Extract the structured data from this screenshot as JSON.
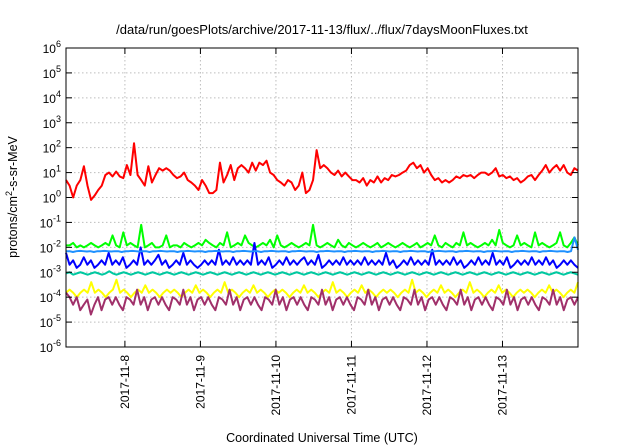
{
  "chart_data": {
    "type": "line",
    "title": "/data/run/goesPlots/archive/2017-11-13/flux/../flux/7daysMoonFluxes.txt",
    "xlabel": "Coordinated Universal Time (UTC)",
    "ylabel_prefix": "protons/cm",
    "ylabel_sup": "2",
    "ylabel_suffix": "-s-sr-MeV",
    "yscale": "log",
    "ylim": [
      1e-06,
      1000000.0
    ],
    "y_ticks": [
      {
        "base": "10",
        "exp": "-6",
        "value": 1e-06
      },
      {
        "base": "10",
        "exp": "-5",
        "value": 1e-05
      },
      {
        "base": "10",
        "exp": "-4",
        "value": 0.0001
      },
      {
        "base": "10",
        "exp": "-3",
        "value": 0.001
      },
      {
        "base": "10",
        "exp": "-2",
        "value": 0.01
      },
      {
        "base": "10",
        "exp": "-1",
        "value": 0.1
      },
      {
        "base": "10",
        "exp": "0",
        "value": 1
      },
      {
        "base": "10",
        "exp": "1",
        "value": 10
      },
      {
        "base": "10",
        "exp": "2",
        "value": 100
      },
      {
        "base": "10",
        "exp": "3",
        "value": 1000
      },
      {
        "base": "10",
        "exp": "4",
        "value": 10000
      },
      {
        "base": "10",
        "exp": "5",
        "value": 100000
      },
      {
        "base": "10",
        "exp": "6",
        "value": 1000000
      }
    ],
    "xlim_days": [
      -0.78,
      6.0
    ],
    "x_ticks": [
      {
        "label": "2017-11-8",
        "day": 0
      },
      {
        "label": "2017-11-9",
        "day": 1
      },
      {
        "label": "2017-11-10",
        "day": 2
      },
      {
        "label": "2017-11-11",
        "day": 3
      },
      {
        "label": "2017-11-12",
        "day": 4
      },
      {
        "label": "2017-11-13",
        "day": 5
      }
    ],
    "grid": true,
    "series": [
      {
        "color": "#ff0000",
        "values": [
          5,
          3,
          1,
          3,
          5,
          18,
          3,
          0.8,
          1.2,
          2,
          3,
          8,
          10,
          7,
          11,
          7,
          6,
          20,
          8,
          150,
          8,
          5,
          3,
          18,
          4,
          8,
          15,
          12,
          15,
          12,
          8,
          6,
          7,
          10,
          5,
          4,
          3,
          2,
          5,
          3,
          1.5,
          1.5,
          2,
          25,
          4,
          8,
          20,
          5,
          15,
          20,
          15,
          10,
          25,
          12,
          25,
          20,
          30,
          10,
          8,
          5,
          4,
          3,
          5,
          4,
          2,
          3,
          10,
          1.5,
          2,
          5,
          80,
          15,
          20,
          15,
          10,
          8,
          12,
          7,
          10,
          7,
          5,
          5,
          4,
          6,
          3,
          5,
          4,
          7,
          4,
          6,
          5,
          8,
          7,
          8,
          10,
          12,
          20,
          25,
          15,
          20,
          10,
          15,
          8,
          5,
          6,
          4,
          5,
          4,
          5,
          7,
          6,
          8,
          7,
          8,
          6,
          8,
          10,
          10,
          8,
          10,
          15,
          7,
          8,
          6,
          7,
          5,
          6,
          4,
          5,
          7,
          8,
          5,
          8,
          12,
          20,
          10,
          15,
          20,
          12,
          20,
          10,
          8,
          15,
          12
        ]
      },
      {
        "color": "#00ff00",
        "values": [
          0.012,
          0.012,
          0.015,
          0.01,
          0.012,
          0.01,
          0.012,
          0.015,
          0.012,
          0.01,
          0.012,
          0.015,
          0.012,
          0.03,
          0.012,
          0.01,
          0.04,
          0.012,
          0.015,
          0.012,
          0.01,
          0.08,
          0.01,
          0.012,
          0.015,
          0.01,
          0.01,
          0.012,
          0.03,
          0.01,
          0.012,
          0.012,
          0.01,
          0.015,
          0.012,
          0.01,
          0.012,
          0.015,
          0.012,
          0.02,
          0.015,
          0.012,
          0.01,
          0.015,
          0.012,
          0.04,
          0.01,
          0.012,
          0.015,
          0.012,
          0.03,
          0.015,
          0.012,
          0.01,
          0.012,
          0.015,
          0.012,
          0.02,
          0.01,
          0.03,
          0.012,
          0.01,
          0.012,
          0.015,
          0.012,
          0.01,
          0.012,
          0.015,
          0.012,
          0.08,
          0.012,
          0.01,
          0.012,
          0.015,
          0.012,
          0.01,
          0.02,
          0.012,
          0.01,
          0.015,
          0.012,
          0.01,
          0.012,
          0.015,
          0.012,
          0.01,
          0.012,
          0.015,
          0.01,
          0.012,
          0.015,
          0.012,
          0.01,
          0.012,
          0.015,
          0.012,
          0.01,
          0.012,
          0.015,
          0.01,
          0.012,
          0.015,
          0.012,
          0.03,
          0.012,
          0.01,
          0.015,
          0.012,
          0.01,
          0.015,
          0.012,
          0.04,
          0.012,
          0.015,
          0.012,
          0.01,
          0.012,
          0.015,
          0.012,
          0.02,
          0.012,
          0.05,
          0.015,
          0.012,
          0.01,
          0.012,
          0.03,
          0.012,
          0.015,
          0.012,
          0.01,
          0.04,
          0.012,
          0.015,
          0.012,
          0.01,
          0.012,
          0.015,
          0.04,
          0.012,
          0.01,
          0.015,
          0.025,
          0.012
        ]
      },
      {
        "color": "#0000ff",
        "values": [
          0.006,
          0.002,
          0.003,
          0.0015,
          0.002,
          0.004,
          0.002,
          0.003,
          0.0015,
          0.002,
          0.003,
          0.002,
          0.006,
          0.002,
          0.003,
          0.002,
          0.004,
          0.0015,
          0.002,
          0.003,
          0.002,
          0.01,
          0.002,
          0.003,
          0.002,
          0.003,
          0.005,
          0.002,
          0.003,
          0.0015,
          0.002,
          0.003,
          0.002,
          0.006,
          0.002,
          0.003,
          0.002,
          0.0015,
          0.002,
          0.003,
          0.002,
          0.003,
          0.002,
          0.008,
          0.002,
          0.003,
          0.002,
          0.004,
          0.002,
          0.003,
          0.002,
          0.003,
          0.002,
          0.015,
          0.002,
          0.003,
          0.002,
          0.004,
          0.0015,
          0.002,
          0.003,
          0.002,
          0.004,
          0.002,
          0.003,
          0.002,
          0.003,
          0.004,
          0.002,
          0.003,
          0.002,
          0.005,
          0.0015,
          0.002,
          0.003,
          0.002,
          0.003,
          0.002,
          0.004,
          0.002,
          0.003,
          0.002,
          0.003,
          0.002,
          0.004,
          0.002,
          0.003,
          0.002,
          0.003,
          0.002,
          0.006,
          0.002,
          0.003,
          0.0015,
          0.002,
          0.003,
          0.002,
          0.004,
          0.002,
          0.003,
          0.002,
          0.003,
          0.002,
          0.008,
          0.002,
          0.003,
          0.002,
          0.003,
          0.002,
          0.004,
          0.002,
          0.003,
          0.0015,
          0.002,
          0.003,
          0.002,
          0.004,
          0.002,
          0.003,
          0.002,
          0.006,
          0.002,
          0.003,
          0.002,
          0.004,
          0.0015,
          0.002,
          0.003,
          0.002,
          0.003,
          0.002,
          0.004,
          0.002,
          0.003,
          0.002,
          0.004,
          0.002,
          0.003,
          0.0015,
          0.002,
          0.003,
          0.002,
          0.003,
          0.002,
          0.0015
        ]
      },
      {
        "color": "#1e90ff",
        "values": [
          0.007,
          0.007,
          0.0065,
          0.007,
          0.0072,
          0.007,
          0.0068,
          0.007,
          0.0065,
          0.007,
          0.007,
          0.0072,
          0.007,
          0.0068,
          0.007,
          0.007,
          0.0065,
          0.007,
          0.007,
          0.0072,
          0.007,
          0.0068,
          0.007,
          0.007,
          0.0065,
          0.007,
          0.007,
          0.0072,
          0.007,
          0.0068,
          0.007,
          0.007,
          0.0065,
          0.007,
          0.007,
          0.0072,
          0.007,
          0.0068,
          0.007,
          0.007,
          0.0065,
          0.007,
          0.007,
          0.0072,
          0.007,
          0.0068,
          0.007,
          0.007,
          0.0065,
          0.007,
          0.007,
          0.0072,
          0.007,
          0.0068,
          0.007,
          0.007,
          0.0065,
          0.007,
          0.007,
          0.0072,
          0.007,
          0.0068,
          0.007,
          0.007,
          0.0065,
          0.007,
          0.007,
          0.0072,
          0.007,
          0.0068,
          0.007,
          0.007,
          0.0065,
          0.007,
          0.007,
          0.0072,
          0.007,
          0.0068,
          0.007,
          0.007,
          0.0065,
          0.007,
          0.007,
          0.0072,
          0.007,
          0.0068,
          0.007,
          0.007,
          0.0065,
          0.007,
          0.007,
          0.0072,
          0.007,
          0.0068,
          0.007,
          0.007,
          0.0065,
          0.007,
          0.007,
          0.0072,
          0.007,
          0.0068,
          0.007,
          0.007,
          0.0065,
          0.007,
          0.007,
          0.0072,
          0.007,
          0.0068,
          0.007,
          0.007,
          0.0065,
          0.007,
          0.007,
          0.0072,
          0.007,
          0.0068,
          0.007,
          0.007,
          0.0065,
          0.007,
          0.007,
          0.0072,
          0.007,
          0.0068,
          0.007,
          0.007,
          0.0065,
          0.007,
          0.007,
          0.0072,
          0.007,
          0.0068,
          0.007,
          0.007,
          0.0065,
          0.007,
          0.007,
          0.0072,
          0.007,
          0.0068,
          0.007,
          0.007,
          0.0065,
          0.007,
          0.025,
          0.008
        ]
      },
      {
        "color": "#00c8a0",
        "values": [
          0.0009,
          0.001,
          0.0008,
          0.0009,
          0.001,
          0.0009,
          0.0008,
          0.0009,
          0.001,
          0.0009,
          0.0008,
          0.0009,
          0.0011,
          0.0009,
          0.0008,
          0.0009,
          0.001,
          0.0009,
          0.0008,
          0.0009,
          0.001,
          0.0009,
          0.0008,
          0.0009,
          0.001,
          0.0009,
          0.0008,
          0.0009,
          0.001,
          0.0009,
          0.0008,
          0.0009,
          0.001,
          0.0009,
          0.0008,
          0.0009,
          0.001,
          0.0009,
          0.0008,
          0.0009,
          0.001,
          0.0009,
          0.0008,
          0.0009,
          0.001,
          0.0009,
          0.0008,
          0.0009,
          0.001,
          0.0009,
          0.0008,
          0.0009,
          0.001,
          0.0009,
          0.0008,
          0.0009,
          0.001,
          0.0009,
          0.0008,
          0.0009,
          0.001,
          0.0009,
          0.0008,
          0.0009,
          0.001,
          0.0009,
          0.0008,
          0.0009,
          0.001,
          0.0009,
          0.0008,
          0.0009,
          0.001,
          0.0009,
          0.0008,
          0.0009,
          0.001,
          0.0009,
          0.0008,
          0.0009,
          0.001,
          0.0009,
          0.0008,
          0.0009,
          0.001,
          0.0009,
          0.0008,
          0.0009,
          0.001,
          0.0009,
          0.0008,
          0.0009,
          0.001,
          0.0009,
          0.0008,
          0.0009,
          0.001,
          0.0009,
          0.0008,
          0.0009,
          0.001,
          0.0009,
          0.0008,
          0.0009,
          0.001,
          0.0009,
          0.0008,
          0.0009,
          0.001,
          0.0009,
          0.0008,
          0.0009,
          0.001,
          0.0009,
          0.0008,
          0.0009,
          0.001,
          0.0009,
          0.0008,
          0.0009,
          0.001,
          0.0009,
          0.0008,
          0.0009,
          0.001,
          0.0009,
          0.0008,
          0.0009,
          0.001,
          0.0009,
          0.0008,
          0.0009,
          0.001,
          0.0009,
          0.0008,
          0.0009,
          0.001,
          0.0009,
          0.0008,
          0.0009,
          0.001,
          0.0009,
          0.0008
        ]
      },
      {
        "color": "#ffff00",
        "values": [
          0.00015,
          0.0002,
          0.00015,
          0.0001,
          0.00015,
          0.0002,
          0.00015,
          0.0004,
          0.00015,
          0.0002,
          0.00015,
          0.0001,
          0.00015,
          0.0002,
          0.0005,
          0.00015,
          0.0002,
          0.00015,
          0.0001,
          0.00015,
          0.0002,
          0.00015,
          0.0003,
          0.00015,
          0.0002,
          0.00015,
          0.0001,
          0.00015,
          0.0002,
          0.00015,
          0.0002,
          0.00015,
          0.0001,
          0.00015,
          0.0002,
          0.00015,
          0.0003,
          0.00015,
          0.0002,
          0.00015,
          0.0001,
          0.00015,
          0.0002,
          0.00015,
          0.0004,
          0.00015,
          0.0002,
          0.00015,
          0.0001,
          0.00015,
          0.0002,
          0.00015,
          0.0003,
          0.00015,
          0.0002,
          0.00015,
          0.0001,
          0.00015,
          0.0002,
          0.00015,
          0.0002,
          0.00015,
          0.0001,
          0.00015,
          0.0002,
          0.00015,
          0.0003,
          0.00015,
          0.0002,
          0.00015,
          0.0001,
          0.00015,
          0.0002,
          0.00015,
          0.0004,
          0.00015,
          0.0002,
          0.00015,
          0.0001,
          0.00015,
          0.0002,
          0.00015,
          0.0003,
          0.00015,
          0.0002,
          0.00015,
          0.0001,
          0.00015,
          0.0002,
          0.00015,
          0.0002,
          0.00015,
          0.0001,
          0.00015,
          0.0002,
          0.00015,
          0.0005,
          0.00015,
          0.0002,
          0.00015,
          0.0001,
          0.00015,
          0.0002,
          0.00015,
          0.0003,
          0.00015,
          0.0002,
          0.00015,
          0.0001,
          0.00015,
          0.0002,
          0.00015,
          0.0004,
          0.00015,
          0.0002,
          0.00015,
          0.0001,
          0.00015,
          0.0002,
          0.00015,
          0.0003,
          0.00015,
          0.0002,
          0.00015,
          0.0001,
          0.00015,
          0.0002,
          0.00015,
          0.0002,
          0.00015,
          0.0001,
          0.00015,
          0.0002,
          0.00015,
          0.0003,
          0.00015,
          0.0002,
          0.00015,
          0.0001,
          0.00015,
          0.0002,
          0.00015,
          0.0004
        ]
      },
      {
        "color": "#a0306a",
        "values": [
          0.00015,
          0.0001,
          5e-05,
          0.0001,
          3e-05,
          5e-05,
          8e-05,
          2e-05,
          5e-05,
          0.0001,
          3e-05,
          8e-05,
          0.0001,
          5e-05,
          0.0001,
          5e-05,
          3e-05,
          0.0001,
          8e-05,
          5e-05,
          0.0002,
          5e-05,
          0.0001,
          3e-05,
          8e-05,
          0.0001,
          5e-05,
          0.0001,
          5e-05,
          3e-05,
          0.0001,
          8e-05,
          5e-05,
          0.0002,
          5e-05,
          0.0001,
          3e-05,
          8e-05,
          0.0001,
          5e-05,
          0.0001,
          5e-05,
          3e-05,
          0.0001,
          8e-05,
          5e-05,
          0.0002,
          5e-05,
          0.0001,
          3e-05,
          8e-05,
          0.0001,
          5e-05,
          0.0001,
          5e-05,
          3e-05,
          0.0001,
          8e-05,
          5e-05,
          0.0002,
          5e-05,
          0.0001,
          3e-05,
          8e-05,
          0.0001,
          5e-05,
          0.0001,
          5e-05,
          3e-05,
          0.0001,
          8e-05,
          5e-05,
          0.0002,
          5e-05,
          0.0001,
          3e-05,
          8e-05,
          0.0001,
          5e-05,
          0.0001,
          5e-05,
          3e-05,
          0.0001,
          8e-05,
          5e-05,
          0.0002,
          5e-05,
          0.0001,
          3e-05,
          8e-05,
          0.0001,
          5e-05,
          0.0001,
          5e-05,
          3e-05,
          0.0001,
          8e-05,
          5e-05,
          0.0002,
          5e-05,
          0.0001,
          3e-05,
          8e-05,
          0.0001,
          5e-05,
          0.0001,
          5e-05,
          3e-05,
          0.0001,
          8e-05,
          5e-05,
          0.0002,
          5e-05,
          0.0001,
          3e-05,
          8e-05,
          0.0001,
          5e-05,
          0.0001,
          5e-05,
          3e-05,
          0.0001,
          8e-05,
          5e-05,
          0.0002,
          5e-05,
          0.0001,
          3e-05,
          8e-05,
          0.0001,
          5e-05,
          0.0001,
          5e-05,
          3e-05,
          0.0001,
          8e-05,
          5e-05,
          0.0002,
          5e-05,
          0.0001,
          3e-05,
          8e-05,
          0.0001,
          5e-05,
          0.0001
        ]
      }
    ]
  }
}
